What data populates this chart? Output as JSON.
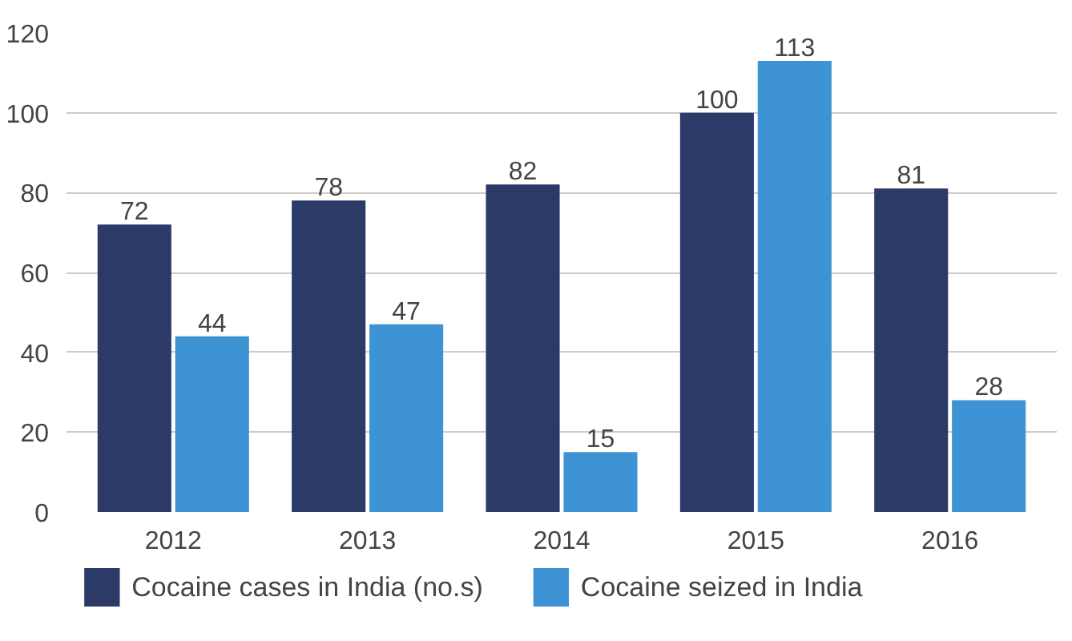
{
  "chart_data": {
    "type": "bar",
    "categories": [
      "2012",
      "2013",
      "2014",
      "2015",
      "2016"
    ],
    "series": [
      {
        "name": "Cocaine cases in India (no.s)",
        "color": "#2b3a67",
        "values": [
          72,
          78,
          82,
          100,
          81
        ]
      },
      {
        "name": "Cocaine seized in India",
        "color": "#3d93d4",
        "values": [
          44,
          47,
          15,
          113,
          28
        ]
      }
    ],
    "ylim": [
      0,
      120
    ],
    "yticks": [
      0,
      20,
      40,
      60,
      80,
      100,
      120
    ],
    "grid": "y",
    "legend": "bottom",
    "data_labels": true
  }
}
